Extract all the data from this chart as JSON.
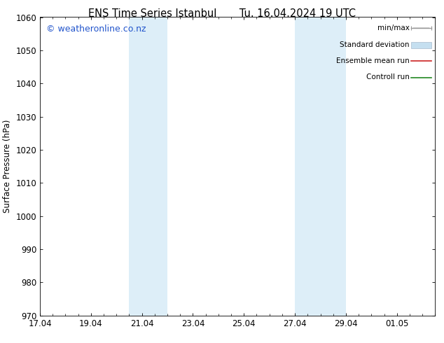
{
  "title_left": "ENS Time Series Istanbul",
  "title_right": "Tu. 16.04.2024 19 UTC",
  "ylabel": "Surface Pressure (hPa)",
  "ylim": [
    970,
    1060
  ],
  "yticks": [
    970,
    980,
    990,
    1000,
    1010,
    1020,
    1030,
    1040,
    1050,
    1060
  ],
  "xtick_labels": [
    "17.04",
    "19.04",
    "21.04",
    "23.04",
    "25.04",
    "27.04",
    "29.04",
    "01.05"
  ],
  "xtick_positions": [
    0,
    2,
    4,
    6,
    8,
    10,
    12,
    14
  ],
  "shaded_bands": [
    {
      "x_start": 3.5,
      "x_end": 5.0
    },
    {
      "x_start": 10.0,
      "x_end": 12.0
    }
  ],
  "shaded_color": "#ddeef8",
  "background_color": "#ffffff",
  "watermark_text": "© weatheronline.co.nz",
  "watermark_color": "#2255cc",
  "legend_labels": [
    "min/max",
    "Standard deviation",
    "Ensemble mean run",
    "Controll run"
  ],
  "legend_colors": [
    "#999999",
    "#c5dff0",
    "#cc2222",
    "#228822"
  ],
  "title_fontsize": 10.5,
  "axis_fontsize": 8.5,
  "tick_fontsize": 8.5,
  "watermark_fontsize": 9,
  "total_days": 15.5
}
